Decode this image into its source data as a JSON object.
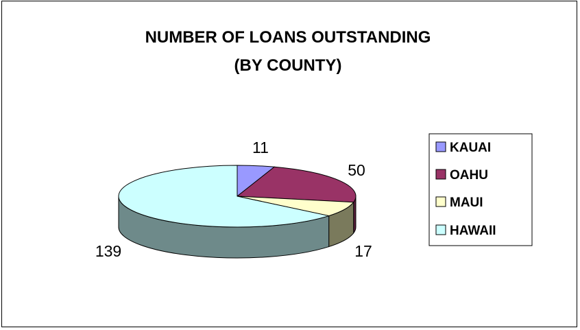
{
  "chart_data": {
    "type": "pie",
    "title_lines": [
      "NUMBER OF LOANS OUTSTANDING",
      "(BY COUNTY)"
    ],
    "categories": [
      "KAUAI",
      "OAHU",
      "MAUI",
      "HAWAII"
    ],
    "values": [
      11,
      50,
      17,
      139
    ],
    "colors": [
      "#9999ff",
      "#993366",
      "#ffffcc",
      "#ccffff"
    ],
    "side_colors": [
      "#5a5a99",
      "#5c1f3d",
      "#7a7a5c",
      "#6e8a8a"
    ],
    "data_labels": [
      "11",
      "50",
      "17",
      "139"
    ],
    "legend_position": "right",
    "three_d": true
  }
}
